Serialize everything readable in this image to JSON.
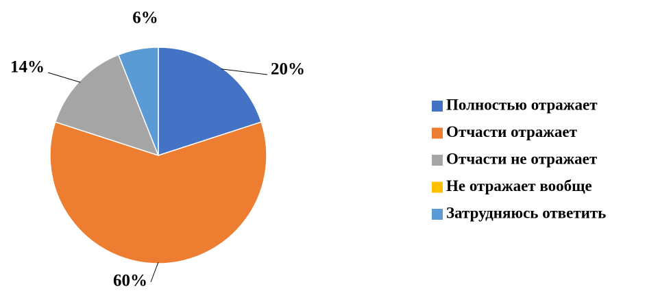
{
  "chart_data": {
    "type": "pie",
    "categories": [
      "Полностью отражает",
      "Отчасти отражает",
      "Отчасти не отражает",
      "Не отражает вообще",
      "Затрудняюсь ответить"
    ],
    "values": [
      20,
      60,
      14,
      0,
      6
    ],
    "value_labels": [
      "20%",
      "60%",
      "14%",
      null,
      "6%"
    ],
    "colors": [
      "#4472c4",
      "#ed7d31",
      "#a5a5a5",
      "#ffc000",
      "#5b9bd5"
    ],
    "legend": "right"
  }
}
